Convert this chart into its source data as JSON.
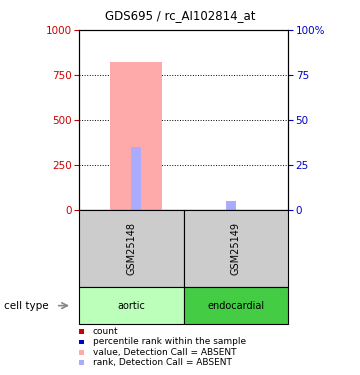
{
  "title": "GDS695 / rc_AI102814_at",
  "samples": [
    "GSM25148",
    "GSM25149"
  ],
  "cell_types": [
    "aortic",
    "endocardial"
  ],
  "cell_type_colors": [
    "#bbffbb",
    "#44cc44"
  ],
  "ylim_left": [
    0,
    1000
  ],
  "ylim_right": [
    0,
    100
  ],
  "yticks_left": [
    0,
    250,
    500,
    750,
    1000
  ],
  "yticks_right": [
    0,
    25,
    50,
    75,
    100
  ],
  "left_color": "#cc0000",
  "right_color": "#0000cc",
  "absent_value_gsm25148": 820,
  "absent_rank_gsm25148": 350,
  "absent_rank_gsm25149": 50,
  "absent_value_color": "#ffaaaa",
  "absent_rank_color": "#aaaaff",
  "legend_items": [
    {
      "label": "count",
      "color": "#cc0000"
    },
    {
      "label": "percentile rank within the sample",
      "color": "#0000cc"
    },
    {
      "label": "value, Detection Call = ABSENT",
      "color": "#ffaaaa"
    },
    {
      "label": "rank, Detection Call = ABSENT",
      "color": "#aaaaff"
    }
  ],
  "sample_box_color": "#cccccc"
}
